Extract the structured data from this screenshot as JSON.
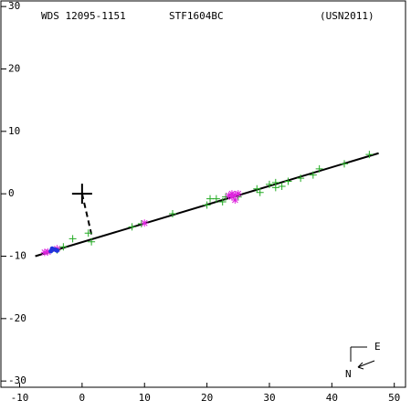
{
  "chart_data": {
    "type": "scatter",
    "header": [
      "WDS 12095-1151",
      "STF1604BC",
      "(USN2011)"
    ],
    "compass": {
      "east": "E",
      "north": "N"
    },
    "xlim": [
      -13,
      51.8
    ],
    "ylim": [
      -31,
      30.9
    ],
    "xticks": [
      -10,
      0,
      10,
      20,
      30,
      40,
      50
    ],
    "yticks": [
      -30,
      -20,
      -10,
      0,
      10,
      20,
      30
    ],
    "series": [
      {
        "type": "line",
        "color": "#000000",
        "x": [
          -7.5,
          47.5
        ],
        "y": [
          -10,
          6.5
        ]
      },
      {
        "type": "line",
        "color": "#000000",
        "dashed": true,
        "x": [
          0,
          1.5
        ],
        "y": [
          0,
          -6.5
        ]
      },
      {
        "type": "marker",
        "marker": "bigcross",
        "color": "#000000",
        "x": [
          0
        ],
        "y": [
          0
        ]
      },
      {
        "type": "marker",
        "marker": "plus",
        "color": "#22aa22",
        "x": [
          -1.5,
          1,
          1.5,
          8,
          9.5,
          14.5,
          20,
          20.5,
          21.5,
          22.5,
          23,
          25,
          28,
          28.5,
          30,
          31,
          31,
          32,
          33,
          35,
          37,
          38,
          42,
          46,
          -4,
          -3
        ],
        "y": [
          -7.2,
          -6.3,
          -7.7,
          -5.3,
          -4.8,
          -3.2,
          -1.8,
          -0.8,
          -0.8,
          -1.3,
          -0.5,
          -0.5,
          0.8,
          0.2,
          1.5,
          1.8,
          1,
          1.2,
          2,
          2.5,
          3,
          4,
          4.8,
          6.3,
          -9,
          -8.5
        ]
      },
      {
        "type": "marker",
        "marker": "star",
        "color": "#dd22dd",
        "x": [
          -6,
          -5.5,
          -4,
          10,
          24,
          24.5,
          24,
          25,
          24.5,
          23.5
        ],
        "y": [
          -9.4,
          -9.3,
          -8.8,
          -4.7,
          -0.5,
          -1,
          0,
          0,
          -0.2,
          -0.3
        ]
      },
      {
        "type": "marker",
        "marker": "dot",
        "color": "#2233dd",
        "x": [
          -5,
          -4.5,
          -4.2,
          -4.8,
          -4
        ],
        "y": [
          -9.2,
          -8.9,
          -9,
          -8.8,
          -9.1
        ]
      }
    ]
  }
}
